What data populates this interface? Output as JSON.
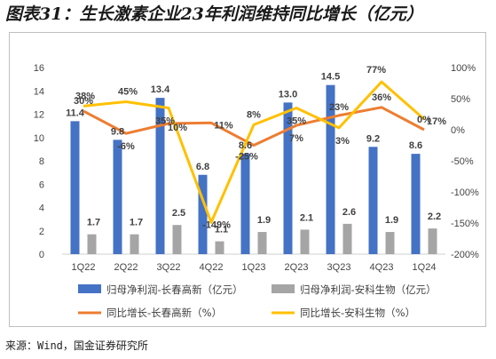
{
  "title": "图表31：生长激素企业23年利润维持同比增长（亿元）",
  "source": "来源：Wind，国金证券研究所",
  "colors": {
    "bar_series_1": "#4472C4",
    "bar_series_2": "#A5A5A5",
    "line_series_1": "#ED7D31",
    "line_series_2": "#FFC000"
  },
  "chart_data": {
    "type": "bar",
    "categories": [
      "1Q22",
      "2Q22",
      "3Q22",
      "4Q22",
      "1Q23",
      "2Q23",
      "3Q23",
      "4Q23",
      "1Q24"
    ],
    "series": [
      {
        "name": "归母净利润-长春高新（亿元）",
        "type": "bar",
        "axis": "left",
        "values": [
          11.4,
          9.8,
          13.4,
          6.8,
          8.6,
          13.0,
          14.5,
          9.2,
          8.6
        ],
        "labels": [
          "11.4",
          "9.8",
          "13.4",
          "6.8",
          "8.6",
          "13.0",
          "14.5",
          "9.2",
          "8.6"
        ]
      },
      {
        "name": "归母净利润-安科生物（亿元）",
        "type": "bar",
        "axis": "left",
        "values": [
          1.7,
          1.7,
          2.5,
          1.1,
          1.9,
          2.1,
          2.6,
          1.9,
          2.2
        ],
        "labels": [
          "1.7",
          "1.7",
          "2.5",
          "1.1",
          "1.9",
          "2.1",
          "2.6",
          "1.9",
          "2.2"
        ]
      },
      {
        "name": "同比增长-长春高新（%）",
        "type": "line",
        "axis": "right",
        "values": [
          30,
          -6,
          10,
          11,
          -25,
          7,
          23,
          36,
          0
        ],
        "labels": [
          "30%",
          "-6%",
          "10%",
          "11%",
          "-25%",
          "7%",
          "23%",
          "36%",
          "0%"
        ]
      },
      {
        "name": "同比增长-安科生物（%）",
        "type": "line",
        "axis": "right",
        "values": [
          38,
          45,
          35,
          -149,
          8,
          35,
          3,
          77,
          17
        ],
        "labels": [
          "38%",
          "45%",
          "35%",
          "-149%",
          "8%",
          "35%",
          "3%",
          "77%",
          "17%"
        ]
      }
    ],
    "y_left": {
      "min": 0,
      "max": 16,
      "ticks": [
        "0",
        "2",
        "4",
        "6",
        "8",
        "10",
        "12",
        "14",
        "16"
      ]
    },
    "y_right": {
      "min": -200,
      "max": 100,
      "ticks": [
        "-200%",
        "-150%",
        "-100%",
        "-50%",
        "0%",
        "50%",
        "100%"
      ]
    },
    "grid": false,
    "legend": "bottom"
  }
}
